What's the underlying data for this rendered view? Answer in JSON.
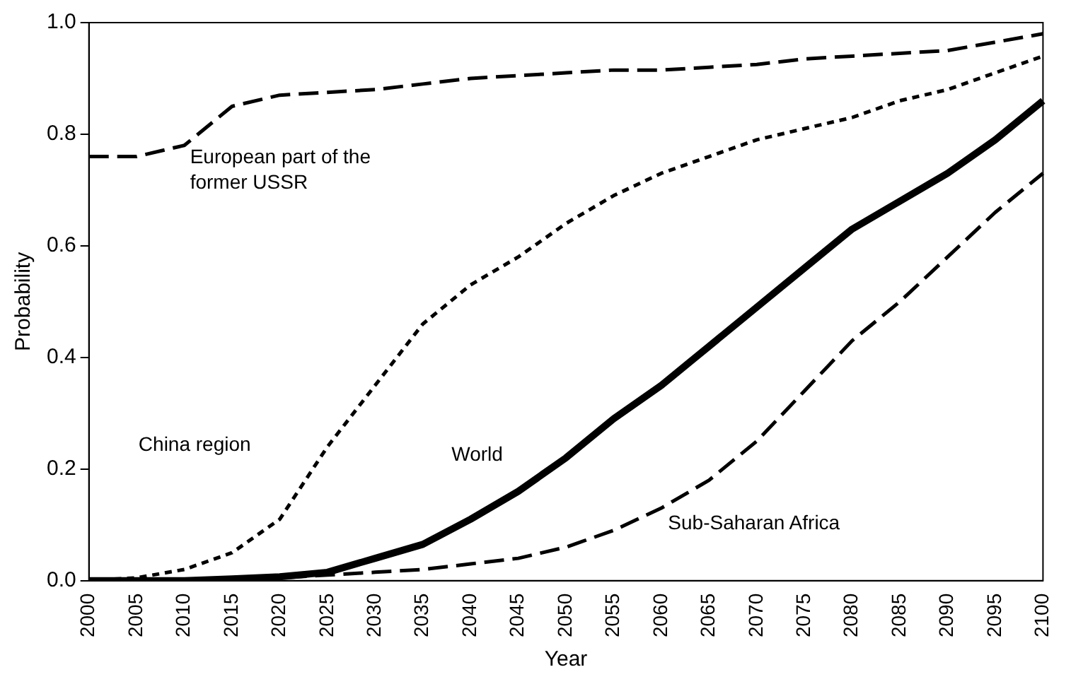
{
  "chart_data": {
    "type": "line",
    "xlabel": "Year",
    "ylabel": "Probability",
    "categories": [
      "2000",
      "2005",
      "2010",
      "2015",
      "2020",
      "2025",
      "2030",
      "2035",
      "2040",
      "2045",
      "2050",
      "2055",
      "2060",
      "2065",
      "2070",
      "2075",
      "2080",
      "2085",
      "2090",
      "2095",
      "2100"
    ],
    "ylim": [
      0,
      1
    ],
    "yticks": [
      {
        "value": 0,
        "label": "0.0"
      },
      {
        "value": 0.2,
        "label": "0.2"
      },
      {
        "value": 0.4,
        "label": "0.4"
      },
      {
        "value": 0.6,
        "label": "0.6"
      },
      {
        "value": 0.8,
        "label": "0.8"
      },
      {
        "value": 1,
        "label": "1.0"
      }
    ],
    "grid": false,
    "legend": false,
    "marker": "none",
    "series": [
      {
        "name": "European part of the former USSR",
        "color": "#000000",
        "line_style": "dashed",
        "values": [
          0.76,
          0.76,
          0.78,
          0.85,
          0.87,
          0.875,
          0.88,
          0.89,
          0.9,
          0.905,
          0.91,
          0.915,
          0.915,
          0.92,
          0.925,
          0.935,
          0.94,
          0.945,
          0.95,
          0.965,
          0.98
        ]
      },
      {
        "name": "China region",
        "color": "#000000",
        "line_style": "dotted",
        "values": [
          0,
          0.005,
          0.02,
          0.05,
          0.11,
          0.24,
          0.35,
          0.46,
          0.53,
          0.58,
          0.64,
          0.69,
          0.73,
          0.76,
          0.79,
          0.81,
          0.83,
          0.86,
          0.88,
          0.91,
          0.94
        ]
      },
      {
        "name": "World",
        "color": "#000000",
        "line_style": "solid",
        "values": [
          0,
          0,
          0,
          0.003,
          0.007,
          0.015,
          0.04,
          0.065,
          0.11,
          0.16,
          0.22,
          0.29,
          0.35,
          0.42,
          0.49,
          0.56,
          0.63,
          0.68,
          0.73,
          0.79,
          0.86
        ]
      },
      {
        "name": "Sub-Saharan Africa",
        "color": "#000000",
        "line_style": "dashed",
        "values": [
          0,
          0,
          0,
          0,
          0.005,
          0.01,
          0.015,
          0.02,
          0.03,
          0.04,
          0.06,
          0.09,
          0.13,
          0.18,
          0.25,
          0.34,
          0.43,
          0.5,
          0.58,
          0.66,
          0.73
        ]
      }
    ]
  }
}
